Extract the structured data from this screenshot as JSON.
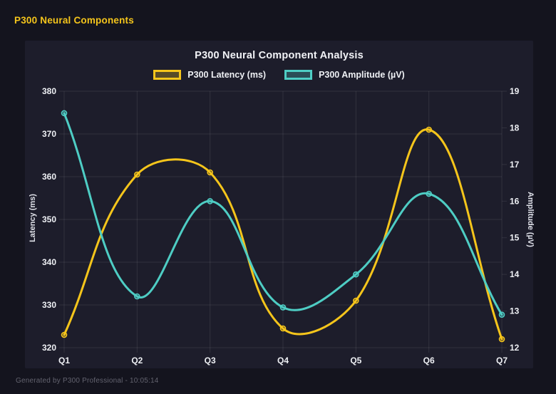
{
  "header": {
    "title": "P300 Neural Components"
  },
  "footer": {
    "text": "Generated by P300 Professional - 10:05:14"
  },
  "colors": {
    "page_bg": "#14141e",
    "card_bg": "#1d1d2b",
    "header_accent": "#f5c51b",
    "grid": "rgba(255,255,255,0.09)",
    "text": "#eef0f4"
  },
  "chart_data": {
    "type": "line",
    "title": "P300 Neural Component Analysis",
    "categories": [
      "Q1",
      "Q2",
      "Q3",
      "Q4",
      "Q5",
      "Q6",
      "Q7"
    ],
    "series": [
      {
        "name": "P300 Latency (ms)",
        "axis": "left",
        "color": "#f5c51b",
        "fill": "rgba(245,197,27,0.28)",
        "values": [
          323,
          360.5,
          361,
          324.5,
          331,
          371,
          322
        ]
      },
      {
        "name": "P300 Amplitude (µV)",
        "axis": "right",
        "color": "#4ecdc4",
        "fill": "rgba(78,205,196,0.28)",
        "values": [
          18.4,
          13.4,
          16,
          13.1,
          14,
          16.2,
          12.9
        ]
      }
    ],
    "y_left": {
      "label": "Latency (ms)",
      "min": 320,
      "max": 380,
      "step": 10
    },
    "y_right": {
      "label": "Amplitude (µV)",
      "min": 12,
      "max": 19,
      "step": 1
    },
    "legend_position": "top",
    "grid": true,
    "line_tension": 0.4
  }
}
